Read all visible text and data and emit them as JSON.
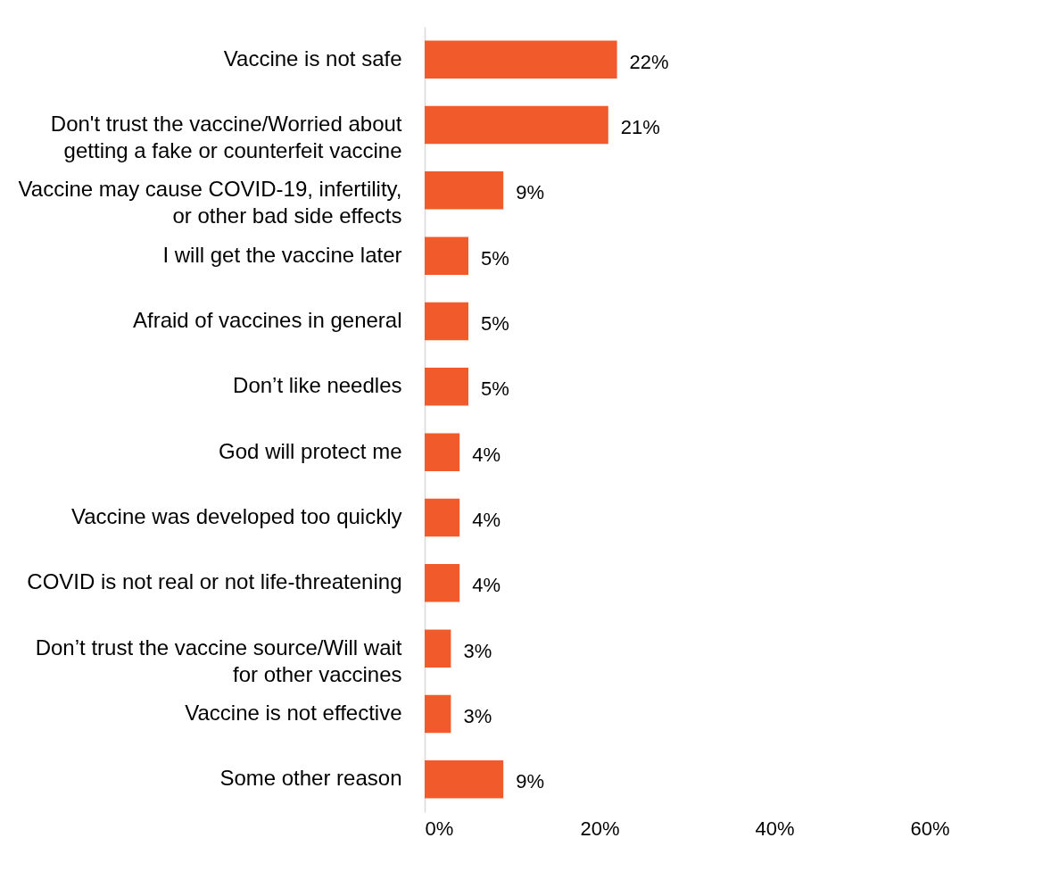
{
  "chart_data": {
    "type": "bar",
    "orientation": "horizontal",
    "categories": [
      "Vaccine is not safe",
      "Don't trust the vaccine/Worried about getting a fake or counterfeit vaccine",
      "Vaccine may cause COVID-19, infertility, or other bad side effects",
      "I will get the vaccine later",
      "Afraid of vaccines in general",
      "Don’t like needles",
      "God will protect me",
      "Vaccine was developed too quickly",
      "COVID is not real or not life-threatening",
      "Don’t trust the vaccine source/Will wait for other vaccines",
      "Vaccine is not effective",
      "Some other reason"
    ],
    "values": [
      22,
      21,
      9,
      5,
      5,
      5,
      4,
      4,
      4,
      3,
      3,
      9
    ],
    "value_labels": [
      "22%",
      "21%",
      "9%",
      "5%",
      "5%",
      "5%",
      "4%",
      "4%",
      "4%",
      "3%",
      "3%",
      "9%"
    ],
    "color": "#f15a2b",
    "xlim": [
      0,
      60
    ],
    "xticks": [
      {
        "value": 0,
        "label": "0%"
      },
      {
        "value": 20,
        "label": "20%"
      },
      {
        "value": 40,
        "label": "40%"
      },
      {
        "value": 60,
        "label": "60%"
      }
    ]
  }
}
